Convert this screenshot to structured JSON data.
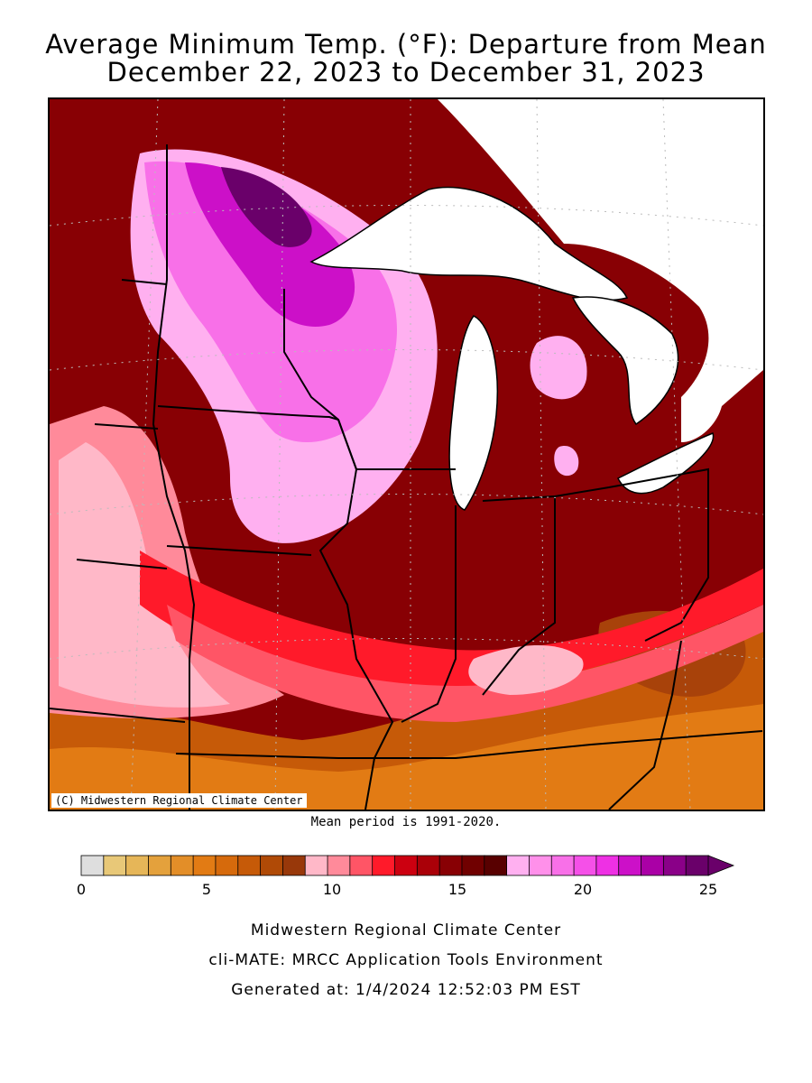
{
  "title": {
    "line1": "Average Minimum Temp. (°F): Departure from Mean",
    "line2": "December 22, 2023 to December 31, 2023"
  },
  "map": {
    "credit": "(C) Midwestern Regional Climate Center",
    "lake_color": "#ffffff",
    "border_color": "#000000"
  },
  "mean_note": "Mean period is 1991-2020.",
  "legend": {
    "ticks": [
      "0",
      "5",
      "10",
      "15",
      "20",
      "25"
    ],
    "colors": [
      "#dedede",
      "#e8c878",
      "#e6b658",
      "#e4a13c",
      "#e38e28",
      "#e27b14",
      "#d66a0c",
      "#c65a08",
      "#b04a06",
      "#98380a",
      "#ffb8c8",
      "#ff8a9a",
      "#ff5566",
      "#ff1a2a",
      "#cc0010",
      "#aa0008",
      "#880004",
      "#700000",
      "#580000",
      "#ffb0f0",
      "#ff90ea",
      "#f870e8",
      "#f550e8",
      "#ee30e4",
      "#cc10c8",
      "#aa00a6",
      "#8a0088",
      "#6a006a"
    ]
  },
  "footer": {
    "line1": "Midwestern Regional Climate Center",
    "line2": "cli-MATE: MRCC Application Tools Environment",
    "line3": "Generated at: 1/4/2024 12:52:03 PM EST"
  }
}
